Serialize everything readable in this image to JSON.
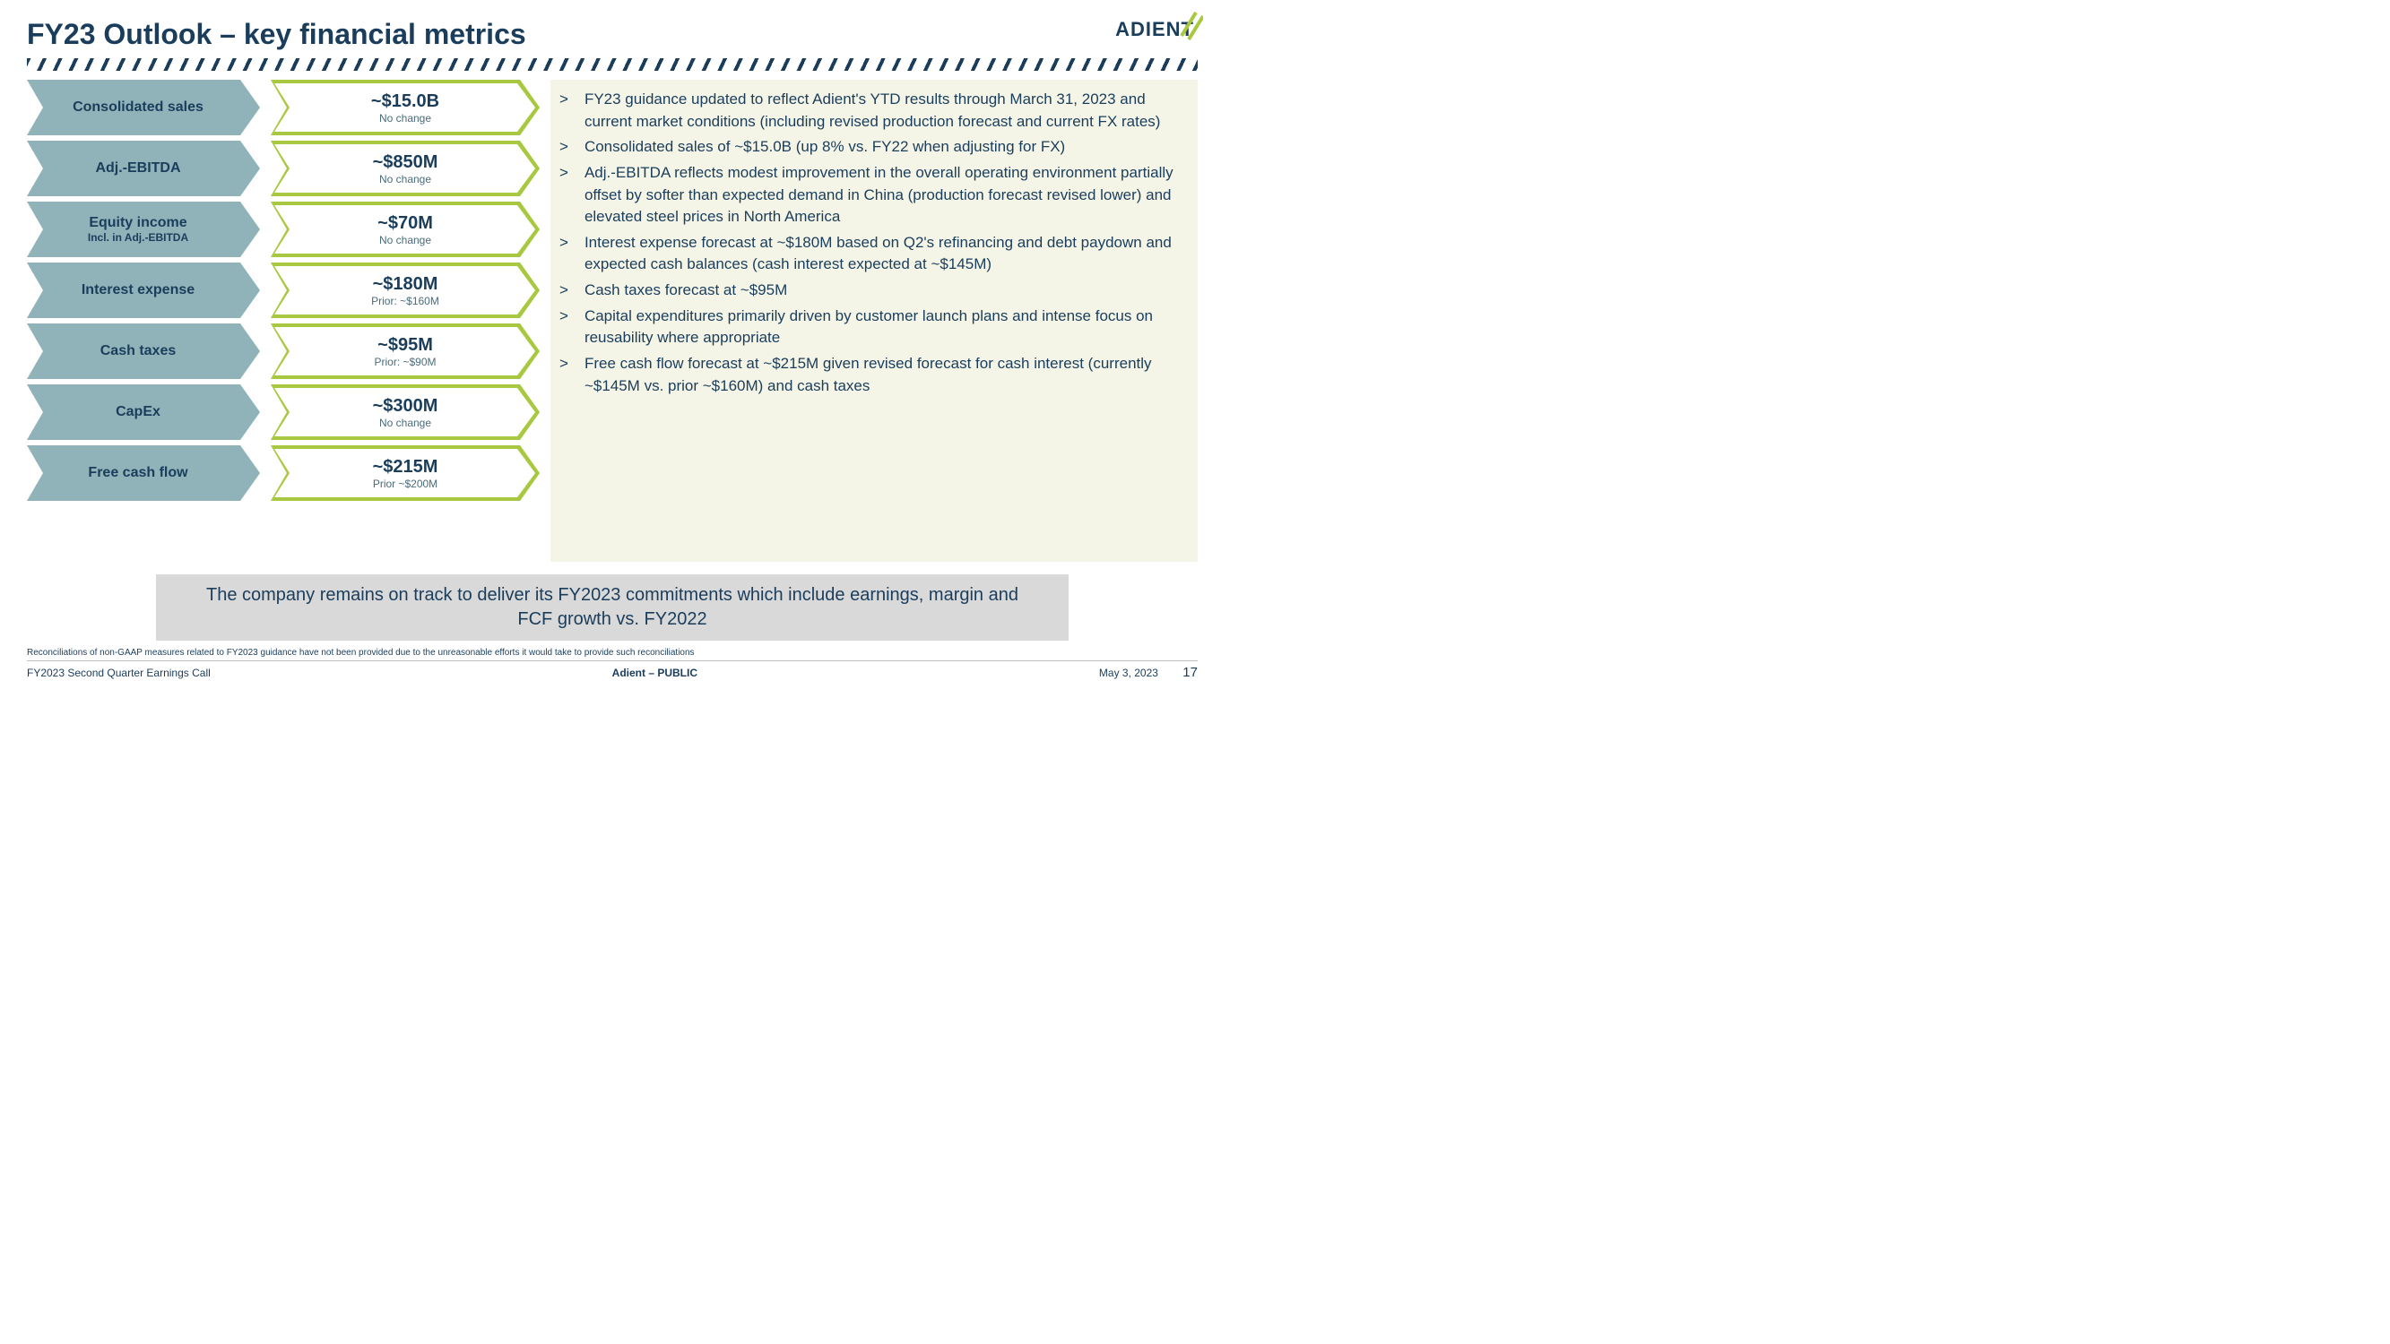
{
  "title": "FY23 Outlook – key financial metrics",
  "logo_text": "ADIENT",
  "colors": {
    "primary_text": "#1a3d5c",
    "label_arrow_bg": "#8fb3b8",
    "value_arrow_border": "#a8c93f",
    "bullets_bg": "#f4f5e6",
    "summary_bg": "#d9d9d9",
    "page_bg": "#ffffff"
  },
  "metrics": [
    {
      "label": "Consolidated sales",
      "sublabel": "",
      "value": "~$15.0B",
      "note": "No change"
    },
    {
      "label": "Adj.-EBITDA",
      "sublabel": "",
      "value": "~$850M",
      "note": "No change"
    },
    {
      "label": "Equity income",
      "sublabel": "Incl. in Adj.-EBITDA",
      "value": "~$70M",
      "note": "No change"
    },
    {
      "label": "Interest expense",
      "sublabel": "",
      "value": "~$180M",
      "note": "Prior: ~$160M"
    },
    {
      "label": "Cash taxes",
      "sublabel": "",
      "value": "~$95M",
      "note": "Prior: ~$90M"
    },
    {
      "label": "CapEx",
      "sublabel": "",
      "value": "~$300M",
      "note": "No change"
    },
    {
      "label": "Free cash flow",
      "sublabel": "",
      "value": "~$215M",
      "note": "Prior ~$200M"
    }
  ],
  "bullets": [
    "FY23 guidance updated to reflect Adient's YTD results through March 31, 2023 and current market conditions (including revised production forecast and current FX rates)",
    "Consolidated sales of ~$15.0B (up 8% vs. FY22 when adjusting for FX)",
    "Adj.-EBITDA reflects modest improvement in the overall operating environment partially offset by softer than expected demand in China (production forecast revised lower) and elevated steel prices in North America",
    "Interest expense forecast at ~$180M based on Q2's refinancing and debt paydown and expected cash balances (cash interest expected at ~$145M)",
    "Cash taxes forecast at ~$95M",
    "Capital expenditures primarily driven by customer launch plans and intense focus on reusability where appropriate",
    "Free cash flow forecast at ~$215M given revised forecast for cash interest (currently ~$145M vs. prior ~$160M) and cash taxes"
  ],
  "summary": "The company remains on track to deliver its FY2023 commitments which include earnings, margin and FCF growth vs. FY2022",
  "footnote": "Reconciliations of non-GAAP measures related to FY2023 guidance have not been provided due to the unreasonable efforts it would take to provide such reconciliations",
  "footer": {
    "left": "FY2023 Second Quarter Earnings Call",
    "center": "Adient – PUBLIC",
    "date": "May 3, 2023",
    "page": "17"
  }
}
